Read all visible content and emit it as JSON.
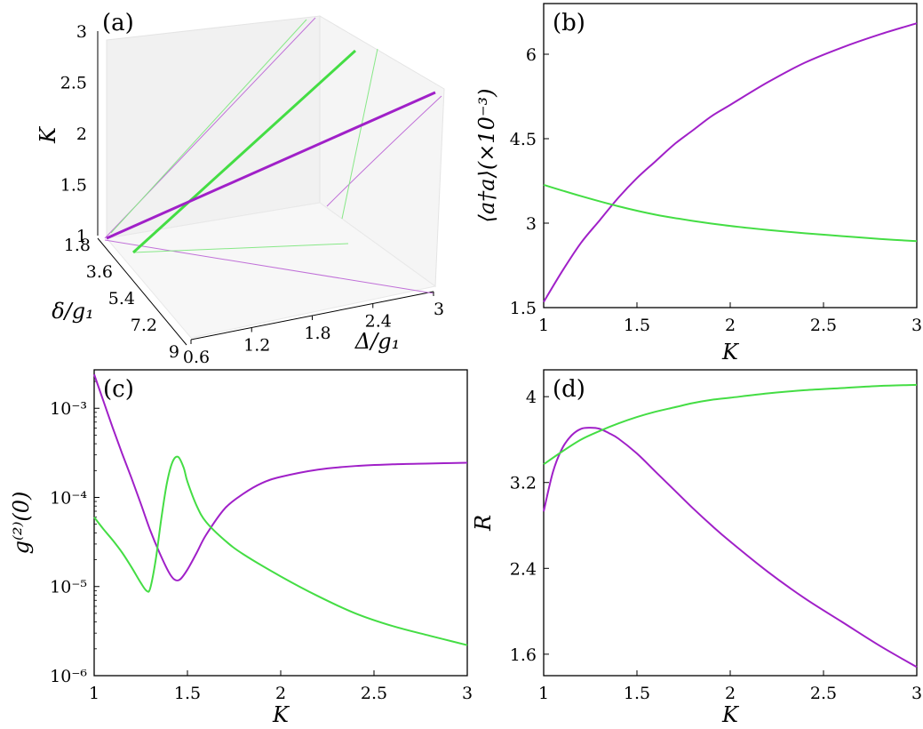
{
  "colors": {
    "purple": "#a020c8",
    "green": "#44dd44"
  },
  "chart_data": [
    {
      "panel": "(a)",
      "type": "line",
      "projection": "3d",
      "panel_label": "(a)",
      "xlabel": "Δ/g₁",
      "ylabel": "δ/g₁",
      "zlabel": "K",
      "xlim": [
        0.6,
        3
      ],
      "ylim": [
        1.8,
        9
      ],
      "zlim": [
        1,
        3
      ],
      "xticks": [
        "0.6",
        "1.2",
        "1.8",
        "2.4",
        "3"
      ],
      "yticks": [
        "1.8",
        "3.6",
        "5.4",
        "7.2",
        "9"
      ],
      "zticks": [
        "1",
        "1.5",
        "2",
        "2.5",
        "3"
      ],
      "series": [
        {
          "color": "purple",
          "points": [
            [
              0.6,
              1.8,
              1
            ],
            [
              3,
              1.8,
              3
            ]
          ]
        },
        {
          "color": "green",
          "points": [
            [
              1.3,
              1.8,
              1
            ],
            [
              2.0,
              1.8,
              3
            ]
          ]
        }
      ]
    },
    {
      "panel": "(b)",
      "type": "line",
      "panel_label": "(b)",
      "xlabel": "K",
      "ylabel": "⟨a†a⟩(×10⁻³)",
      "xlim": [
        1,
        3
      ],
      "ylim": [
        1.5,
        6.9
      ],
      "xticks": [
        "1",
        "1.5",
        "2",
        "2.5",
        "3"
      ],
      "yticks": [
        "1.5",
        "3",
        "4.5",
        "6"
      ],
      "series": [
        {
          "color": "purple",
          "x": [
            1.0,
            1.1,
            1.2,
            1.3,
            1.4,
            1.5,
            1.6,
            1.7,
            1.8,
            1.9,
            2.0,
            2.2,
            2.4,
            2.6,
            2.8,
            3.0
          ],
          "y": [
            1.6,
            2.15,
            2.65,
            3.05,
            3.45,
            3.8,
            4.1,
            4.4,
            4.65,
            4.9,
            5.1,
            5.5,
            5.85,
            6.12,
            6.35,
            6.55
          ]
        },
        {
          "color": "green",
          "x": [
            1.0,
            1.2,
            1.4,
            1.6,
            1.8,
            2.0,
            2.2,
            2.4,
            2.6,
            2.8,
            3.0
          ],
          "y": [
            3.68,
            3.48,
            3.3,
            3.15,
            3.04,
            2.95,
            2.88,
            2.82,
            2.77,
            2.72,
            2.68
          ]
        }
      ]
    },
    {
      "panel": "(c)",
      "type": "line",
      "panel_label": "(c)",
      "xlabel": "K",
      "ylabel": "g⁽²⁾(0)",
      "yscale": "log",
      "xlim": [
        1,
        3
      ],
      "ylim": [
        1e-06,
        0.0027
      ],
      "xticks": [
        "1",
        "1.5",
        "2",
        "2.5",
        "3"
      ],
      "yticks": [
        "10⁻⁶",
        "10⁻⁵",
        "10⁻⁴",
        "10⁻³"
      ],
      "ytick_values": [
        1e-06,
        1e-05,
        0.0001,
        0.001
      ],
      "series": [
        {
          "color": "purple",
          "x": [
            1.0,
            1.05,
            1.1,
            1.15,
            1.2,
            1.25,
            1.3,
            1.35,
            1.4,
            1.43,
            1.46,
            1.5,
            1.55,
            1.6,
            1.7,
            1.8,
            1.9,
            2.0,
            2.2,
            2.4,
            2.6,
            2.8,
            3.0
          ],
          "y": [
            0.0024,
            0.0012,
            0.0006,
            0.00031,
            0.000165,
            8.5e-05,
            4.3e-05,
            2.4e-05,
            1.45e-05,
            1.2e-05,
            1.2e-05,
            1.55e-05,
            2.4e-05,
            3.8e-05,
            7.5e-05,
            0.00011,
            0.000145,
            0.00017,
            0.000205,
            0.000225,
            0.000235,
            0.00024,
            0.000245
          ]
        },
        {
          "color": "green",
          "x": [
            1.0,
            1.05,
            1.1,
            1.15,
            1.2,
            1.25,
            1.28,
            1.3,
            1.33,
            1.36,
            1.39,
            1.42,
            1.45,
            1.48,
            1.5,
            1.55,
            1.6,
            1.7,
            1.8,
            2.0,
            2.2,
            2.4,
            2.6,
            2.8,
            3.0
          ],
          "y": [
            6e-05,
            4.4e-05,
            3.3e-05,
            2.4e-05,
            1.65e-05,
            1.1e-05,
            9e-06,
            9.5e-06,
            2e-05,
            5.8e-05,
            0.000145,
            0.00025,
            0.000285,
            0.000215,
            0.00015,
            8e-05,
            5.3e-05,
            3.3e-05,
            2.3e-05,
            1.3e-05,
            7.8e-06,
            5e-06,
            3.6e-06,
            2.8e-06,
            2.2e-06
          ]
        }
      ]
    },
    {
      "panel": "(d)",
      "type": "line",
      "panel_label": "(d)",
      "xlabel": "K",
      "ylabel": "R",
      "xlim": [
        1,
        3
      ],
      "ylim": [
        1.4,
        4.25
      ],
      "xticks": [
        "1",
        "1.5",
        "2",
        "2.5",
        "3"
      ],
      "yticks": [
        "1.6",
        "2.4",
        "3.2",
        "4"
      ],
      "series": [
        {
          "color": "purple",
          "x": [
            1.0,
            1.05,
            1.1,
            1.15,
            1.2,
            1.25,
            1.3,
            1.35,
            1.4,
            1.5,
            1.6,
            1.7,
            1.8,
            1.9,
            2.0,
            2.2,
            2.4,
            2.6,
            2.8,
            3.0
          ],
          "y": [
            2.93,
            3.3,
            3.52,
            3.64,
            3.7,
            3.71,
            3.7,
            3.66,
            3.61,
            3.47,
            3.3,
            3.13,
            2.96,
            2.8,
            2.65,
            2.37,
            2.12,
            1.9,
            1.68,
            1.48
          ]
        },
        {
          "color": "green",
          "x": [
            1.0,
            1.1,
            1.2,
            1.3,
            1.4,
            1.5,
            1.6,
            1.7,
            1.8,
            1.9,
            2.0,
            2.2,
            2.4,
            2.6,
            2.8,
            3.0
          ],
          "y": [
            3.37,
            3.49,
            3.6,
            3.68,
            3.75,
            3.81,
            3.86,
            3.9,
            3.94,
            3.97,
            3.99,
            4.03,
            4.06,
            4.08,
            4.1,
            4.11
          ]
        }
      ]
    }
  ]
}
